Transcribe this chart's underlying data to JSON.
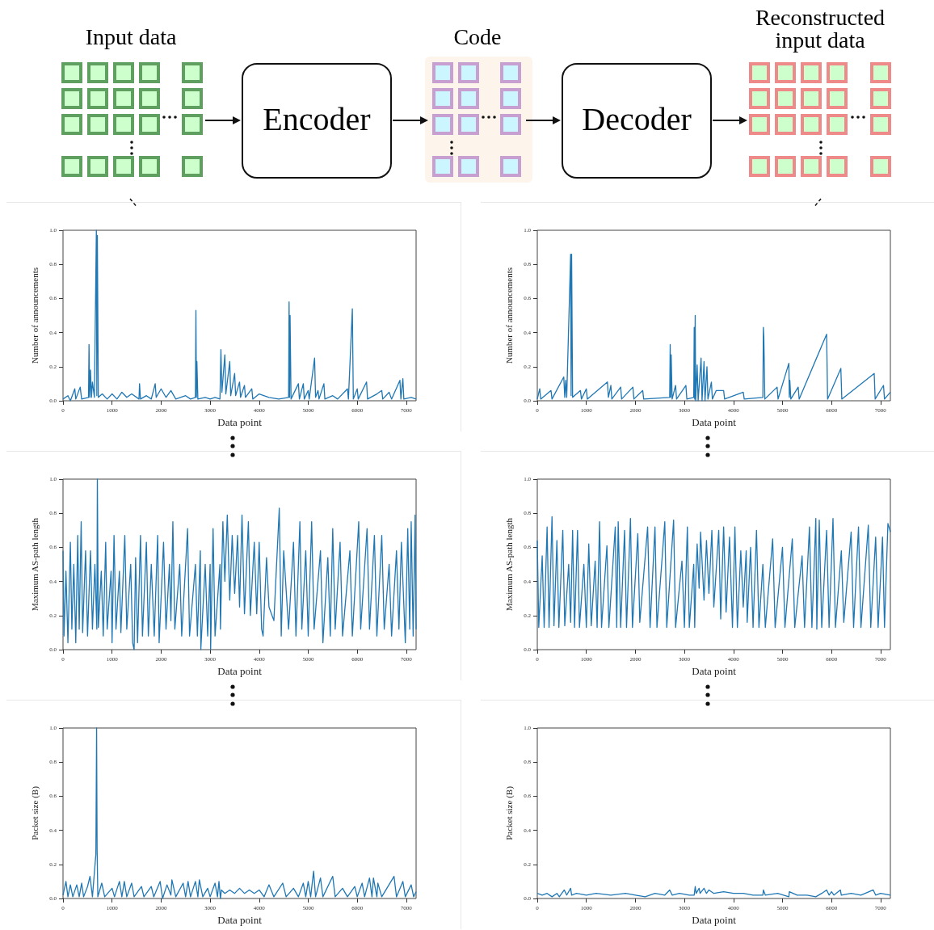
{
  "chart_data": [
    {
      "type": "other",
      "annotations": [
        "Input data",
        "Encoder",
        "Code",
        "Decoder",
        "Reconstructed input data"
      ]
    },
    {
      "type": "line",
      "xlabel": "Data point",
      "ylabel": "Number of announcements",
      "color": "#1f77b4",
      "xlim": [
        0,
        7200
      ],
      "xticks": [
        0,
        1000,
        2000,
        3000,
        4000,
        5000,
        6000,
        7000
      ],
      "ylim": [
        0,
        1
      ],
      "yticks": [
        {
          "value": 0,
          "label": "0.0"
        },
        {
          "value": 0.2,
          "label": "0.2"
        },
        {
          "value": 0.4,
          "label": "0.4"
        },
        {
          "value": 0.6,
          "label": "0.6"
        },
        {
          "value": 0.8,
          "label": "0.8"
        },
        {
          "value": 1,
          "label": "1.0"
        }
      ],
      "x": [
        0,
        100,
        150,
        240,
        260,
        350,
        380,
        520,
        530,
        545,
        560,
        580,
        600,
        640,
        680,
        690,
        700,
        720,
        800,
        900,
        1000,
        1100,
        1200,
        1300,
        1400,
        1550,
        1560,
        1580,
        1700,
        1800,
        1880,
        1900,
        2000,
        2100,
        2200,
        2300,
        2500,
        2600,
        2700,
        2710,
        2720,
        2730,
        2750,
        2900,
        3000,
        3100,
        3200,
        3220,
        3240,
        3300,
        3320,
        3400,
        3420,
        3500,
        3520,
        3600,
        3620,
        3700,
        3720,
        3850,
        3870,
        4000,
        4200,
        4400,
        4600,
        4610,
        4620,
        4630,
        4650,
        4800,
        4820,
        4900,
        4920,
        5000,
        5020,
        5130,
        5150,
        5200,
        5220,
        5320,
        5340,
        5500,
        5600,
        5800,
        5820,
        5900,
        5920,
        6000,
        6020,
        6190,
        6210,
        6400,
        6500,
        6520,
        6650,
        6700,
        6870,
        6890,
        6930,
        6950,
        7100,
        7200
      ],
      "values": [
        0.01,
        0.03,
        0.0,
        0.07,
        0.01,
        0.08,
        0.01,
        0.02,
        0.33,
        0.02,
        0.18,
        0.02,
        0.11,
        0.02,
        1.0,
        0.03,
        0.97,
        0.02,
        0.04,
        0.01,
        0.04,
        0.01,
        0.05,
        0.02,
        0.04,
        0.01,
        0.1,
        0.01,
        0.03,
        0.01,
        0.1,
        0.02,
        0.07,
        0.02,
        0.06,
        0.01,
        0.03,
        0.01,
        0.02,
        0.53,
        0.02,
        0.23,
        0.01,
        0.02,
        0.01,
        0.02,
        0.01,
        0.3,
        0.05,
        0.27,
        0.04,
        0.23,
        0.03,
        0.16,
        0.03,
        0.11,
        0.02,
        0.09,
        0.02,
        0.07,
        0.01,
        0.04,
        0.02,
        0.01,
        0.02,
        0.58,
        0.02,
        0.5,
        0.01,
        0.1,
        0.01,
        0.1,
        0.01,
        0.06,
        0.01,
        0.25,
        0.02,
        0.06,
        0.01,
        0.1,
        0.01,
        0.03,
        0.01,
        0.07,
        0.01,
        0.54,
        0.01,
        0.07,
        0.01,
        0.11,
        0.01,
        0.04,
        0.06,
        0.01,
        0.05,
        0.01,
        0.12,
        0.01,
        0.13,
        0.01,
        0.02,
        0.01
      ]
    },
    {
      "type": "line",
      "xlabel": "Data point",
      "ylabel": "Number of announcements",
      "color": "#1f77b4",
      "xlim": [
        0,
        7200
      ],
      "xticks": [
        0,
        1000,
        2000,
        3000,
        4000,
        5000,
        6000,
        7000
      ],
      "ylim": [
        0,
        1
      ],
      "yticks": [
        {
          "value": 0,
          "label": "0.0"
        },
        {
          "value": 0.2,
          "label": "0.2"
        },
        {
          "value": 0.4,
          "label": "0.4"
        },
        {
          "value": 0.6,
          "label": "0.6"
        },
        {
          "value": 0.8,
          "label": "0.8"
        },
        {
          "value": 1,
          "label": "1.0"
        }
      ],
      "x": [
        0,
        50,
        70,
        280,
        300,
        540,
        560,
        580,
        600,
        680,
        690,
        700,
        720,
        880,
        900,
        1000,
        1020,
        1430,
        1450,
        1500,
        1520,
        1700,
        1720,
        1950,
        1970,
        2150,
        2170,
        2700,
        2710,
        2720,
        2730,
        2750,
        2820,
        2840,
        3030,
        3050,
        3190,
        3200,
        3210,
        3220,
        3230,
        3260,
        3280,
        3340,
        3360,
        3400,
        3420,
        3460,
        3480,
        3550,
        3570,
        3650,
        3800,
        3820,
        4200,
        4220,
        4600,
        4610,
        4620,
        4640,
        4890,
        4910,
        5130,
        5140,
        5150,
        5170,
        5320,
        5340,
        5900,
        5920,
        6190,
        6210,
        6870,
        6890,
        7060,
        7080,
        7200
      ],
      "values": [
        0.01,
        0.07,
        0.01,
        0.06,
        0.01,
        0.14,
        0.02,
        0.12,
        0.02,
        0.86,
        0.03,
        0.86,
        0.02,
        0.06,
        0.01,
        0.07,
        0.01,
        0.11,
        0.02,
        0.09,
        0.01,
        0.08,
        0.01,
        0.08,
        0.01,
        0.06,
        0.01,
        0.02,
        0.33,
        0.02,
        0.27,
        0.01,
        0.09,
        0.01,
        0.09,
        0.01,
        0.02,
        0.43,
        0.01,
        0.5,
        0.0,
        0.21,
        0.0,
        0.25,
        0.0,
        0.23,
        0.0,
        0.2,
        0.01,
        0.11,
        0.01,
        0.06,
        0.06,
        0.01,
        0.05,
        0.01,
        0.02,
        0.43,
        0.37,
        0.01,
        0.08,
        0.01,
        0.22,
        0.02,
        0.12,
        0.01,
        0.08,
        0.01,
        0.39,
        0.01,
        0.19,
        0.01,
        0.16,
        0.01,
        0.09,
        0.01,
        0.05
      ]
    },
    {
      "type": "line",
      "xlabel": "Data point",
      "ylabel": "Maximum AS-path length",
      "color": "#1f77b4",
      "xlim": [
        0,
        7200
      ],
      "xticks": [
        0,
        1000,
        2000,
        3000,
        4000,
        5000,
        6000,
        7000
      ],
      "ylim": [
        0,
        1
      ],
      "yticks": [
        {
          "value": 0,
          "label": "0.0"
        },
        {
          "value": 0.2,
          "label": "0.2"
        },
        {
          "value": 0.4,
          "label": "0.4"
        },
        {
          "value": 0.6,
          "label": "0.6"
        },
        {
          "value": 0.8,
          "label": "0.8"
        },
        {
          "value": 1,
          "label": "1.0"
        }
      ],
      "x": [
        0,
        20,
        60,
        100,
        150,
        180,
        220,
        260,
        300,
        330,
        370,
        400,
        460,
        500,
        560,
        600,
        650,
        690,
        700,
        720,
        780,
        820,
        870,
        900,
        980,
        1000,
        1040,
        1080,
        1150,
        1180,
        1260,
        1300,
        1380,
        1420,
        1450,
        1480,
        1520,
        1580,
        1620,
        1700,
        1740,
        1800,
        1860,
        1930,
        1960,
        2050,
        2100,
        2170,
        2200,
        2240,
        2280,
        2380,
        2420,
        2540,
        2580,
        2700,
        2740,
        2800,
        2810,
        2900,
        2950,
        3000,
        3010,
        3060,
        3100,
        3200,
        3210,
        3230,
        3260,
        3300,
        3350,
        3400,
        3450,
        3500,
        3560,
        3600,
        3650,
        3700,
        3780,
        3820,
        3900,
        3950,
        4000,
        4050,
        4080,
        4150,
        4200,
        4300,
        4410,
        4450,
        4500,
        4600,
        4700,
        4750,
        4830,
        4870,
        4950,
        5000,
        5070,
        5120,
        5250,
        5300,
        5400,
        5450,
        5500,
        5550,
        5650,
        5700,
        5850,
        5900,
        6030,
        6070,
        6200,
        6250,
        6350,
        6400,
        6500,
        6550,
        6650,
        6700,
        6800,
        6850,
        6900,
        6980,
        7030,
        7070,
        7100,
        7140,
        7180,
        7200
      ],
      "values": [
        0.58,
        0.08,
        0.46,
        0.04,
        0.63,
        0.12,
        0.5,
        0.04,
        0.67,
        0.12,
        0.75,
        0.1,
        0.58,
        0.08,
        0.58,
        0.12,
        0.5,
        0.12,
        1.0,
        0.13,
        0.46,
        0.08,
        0.63,
        0.12,
        0.46,
        0.04,
        0.67,
        0.12,
        0.46,
        0.1,
        0.67,
        0.12,
        0.5,
        0.04,
        0.0,
        0.54,
        0.04,
        0.67,
        0.08,
        0.63,
        0.08,
        0.5,
        0.08,
        0.67,
        0.04,
        0.63,
        0.12,
        0.5,
        0.17,
        0.75,
        0.12,
        0.5,
        0.08,
        0.71,
        0.08,
        0.5,
        0.08,
        0.58,
        0.0,
        0.5,
        0.08,
        0.5,
        0.0,
        0.71,
        0.08,
        0.5,
        0.12,
        0.38,
        0.75,
        0.4,
        0.79,
        0.29,
        0.67,
        0.33,
        0.67,
        0.25,
        0.79,
        0.21,
        0.75,
        0.2,
        0.63,
        0.21,
        0.63,
        0.12,
        0.08,
        0.54,
        0.25,
        0.17,
        0.83,
        0.08,
        0.58,
        0.12,
        0.63,
        0.08,
        0.75,
        0.12,
        0.58,
        0.08,
        0.75,
        0.12,
        0.58,
        0.04,
        0.54,
        0.08,
        0.71,
        0.12,
        0.63,
        0.08,
        0.58,
        0.08,
        0.75,
        0.12,
        0.71,
        0.12,
        0.67,
        0.08,
        0.67,
        0.12,
        0.5,
        0.08,
        0.58,
        0.12,
        0.63,
        0.04,
        0.71,
        0.12,
        0.75,
        0.08,
        0.79,
        0.12
      ]
    },
    {
      "type": "line",
      "xlabel": "Data point",
      "ylabel": "Maximum AS-path length",
      "color": "#1f77b4",
      "xlim": [
        0,
        7200
      ],
      "xticks": [
        0,
        1000,
        2000,
        3000,
        4000,
        5000,
        6000,
        7000
      ],
      "ylim": [
        0,
        1
      ],
      "yticks": [
        {
          "value": 0,
          "label": "0.0"
        },
        {
          "value": 0.2,
          "label": "0.2"
        },
        {
          "value": 0.4,
          "label": "0.4"
        },
        {
          "value": 0.6,
          "label": "0.6"
        },
        {
          "value": 0.8,
          "label": "0.8"
        },
        {
          "value": 1,
          "label": "1.0"
        }
      ],
      "x": [
        0,
        30,
        100,
        140,
        200,
        240,
        300,
        340,
        400,
        440,
        520,
        560,
        640,
        680,
        720,
        760,
        820,
        860,
        950,
        1000,
        1050,
        1100,
        1180,
        1220,
        1270,
        1310,
        1420,
        1460,
        1590,
        1620,
        1650,
        1700,
        1780,
        1820,
        1900,
        1940,
        2050,
        2090,
        2250,
        2300,
        2400,
        2440,
        2600,
        2640,
        2780,
        2820,
        2950,
        3000,
        3060,
        3100,
        3190,
        3210,
        3230,
        3260,
        3300,
        3330,
        3400,
        3450,
        3500,
        3560,
        3600,
        3700,
        3740,
        3800,
        3850,
        3920,
        3980,
        4030,
        4080,
        4150,
        4200,
        4260,
        4280,
        4350,
        4400,
        4470,
        4520,
        4600,
        4650,
        4800,
        4850,
        5000,
        5050,
        5200,
        5250,
        5400,
        5450,
        5550,
        5600,
        5680,
        5700,
        5750,
        5800,
        5900,
        5950,
        6030,
        6080,
        6200,
        6250,
        6400,
        6450,
        6550,
        6600,
        6750,
        6800,
        6900,
        6950,
        7040,
        7080,
        7150,
        7200
      ],
      "values": [
        0.64,
        0.13,
        0.55,
        0.13,
        0.72,
        0.13,
        0.78,
        0.14,
        0.64,
        0.13,
        0.7,
        0.14,
        0.5,
        0.16,
        0.7,
        0.13,
        0.7,
        0.13,
        0.5,
        0.13,
        0.62,
        0.14,
        0.52,
        0.13,
        0.75,
        0.13,
        0.61,
        0.13,
        0.72,
        0.13,
        0.75,
        0.13,
        0.7,
        0.13,
        0.77,
        0.13,
        0.68,
        0.16,
        0.72,
        0.13,
        0.72,
        0.13,
        0.75,
        0.13,
        0.76,
        0.13,
        0.52,
        0.13,
        0.72,
        0.13,
        0.5,
        0.13,
        0.4,
        0.62,
        0.36,
        0.69,
        0.29,
        0.64,
        0.33,
        0.7,
        0.25,
        0.7,
        0.18,
        0.72,
        0.22,
        0.66,
        0.13,
        0.72,
        0.13,
        0.58,
        0.25,
        0.58,
        0.16,
        0.6,
        0.13,
        0.7,
        0.13,
        0.5,
        0.13,
        0.65,
        0.13,
        0.6,
        0.13,
        0.65,
        0.13,
        0.55,
        0.13,
        0.72,
        0.13,
        0.77,
        0.12,
        0.76,
        0.13,
        0.7,
        0.13,
        0.77,
        0.13,
        0.58,
        0.16,
        0.69,
        0.13,
        0.72,
        0.13,
        0.73,
        0.13,
        0.66,
        0.13,
        0.66,
        0.13,
        0.74,
        0.69
      ]
    },
    {
      "type": "line",
      "xlabel": "Data point",
      "ylabel": "Packet size (B)",
      "color": "#1f77b4",
      "xlim": [
        0,
        7200
      ],
      "xticks": [
        0,
        1000,
        2000,
        3000,
        4000,
        5000,
        6000,
        7000
      ],
      "ylim": [
        0,
        1
      ],
      "yticks": [
        {
          "value": 0,
          "label": "0.0"
        },
        {
          "value": 0.2,
          "label": "0.2"
        },
        {
          "value": 0.4,
          "label": "0.4"
        },
        {
          "value": 0.6,
          "label": "0.6"
        },
        {
          "value": 0.8,
          "label": "0.8"
        },
        {
          "value": 1,
          "label": "1.0"
        }
      ],
      "x": [
        0,
        60,
        100,
        150,
        200,
        280,
        330,
        380,
        420,
        500,
        550,
        600,
        670,
        685,
        695,
        710,
        790,
        850,
        1000,
        1050,
        1150,
        1200,
        1250,
        1300,
        1400,
        1450,
        1600,
        1650,
        1800,
        1850,
        1980,
        2030,
        2120,
        2200,
        2220,
        2300,
        2450,
        2500,
        2550,
        2600,
        2700,
        2750,
        2780,
        2850,
        2950,
        3000,
        3100,
        3150,
        3180,
        3210,
        3230,
        3300,
        3400,
        3500,
        3600,
        3700,
        3800,
        3900,
        4000,
        4100,
        4200,
        4300,
        4480,
        4550,
        4700,
        4800,
        4900,
        4950,
        5000,
        5050,
        5110,
        5150,
        5250,
        5300,
        5500,
        5550,
        5700,
        5800,
        5950,
        6000,
        6100,
        6150,
        6250,
        6300,
        6330,
        6400,
        6420,
        6500,
        6750,
        6800,
        6930,
        6980,
        7100,
        7150,
        7200
      ],
      "values": [
        0.02,
        0.1,
        0.01,
        0.08,
        0.01,
        0.08,
        0.01,
        0.09,
        0.01,
        0.07,
        0.13,
        0.01,
        0.26,
        1.0,
        0.29,
        0.01,
        0.09,
        0.01,
        0.06,
        0.01,
        0.1,
        0.01,
        0.1,
        0.01,
        0.09,
        0.01,
        0.07,
        0.01,
        0.07,
        0.01,
        0.1,
        0.0,
        0.08,
        0.02,
        0.11,
        0.01,
        0.09,
        0.01,
        0.1,
        0.01,
        0.1,
        0.01,
        0.11,
        0.01,
        0.06,
        0.01,
        0.09,
        0.01,
        0.1,
        0.0,
        0.05,
        0.03,
        0.05,
        0.03,
        0.06,
        0.03,
        0.05,
        0.03,
        0.05,
        0.01,
        0.08,
        0.01,
        0.09,
        0.01,
        0.06,
        0.01,
        0.09,
        0.01,
        0.1,
        0.01,
        0.16,
        0.01,
        0.12,
        0.01,
        0.13,
        0.01,
        0.06,
        0.01,
        0.07,
        0.01,
        0.09,
        0.01,
        0.12,
        0.01,
        0.12,
        0.01,
        0.09,
        0.01,
        0.13,
        0.01,
        0.1,
        0.01,
        0.08,
        0.01,
        0.04
      ]
    },
    {
      "type": "line",
      "xlabel": "Data point",
      "ylabel": "Packet size (B)",
      "color": "#1f77b4",
      "xlim": [
        0,
        7200
      ],
      "xticks": [
        0,
        1000,
        2000,
        3000,
        4000,
        5000,
        6000,
        7000
      ],
      "ylim": [
        0,
        1
      ],
      "yticks": [
        {
          "value": 0,
          "label": "0.0"
        },
        {
          "value": 0.2,
          "label": "0.2"
        },
        {
          "value": 0.4,
          "label": "0.4"
        },
        {
          "value": 0.6,
          "label": "0.6"
        },
        {
          "value": 0.8,
          "label": "0.8"
        },
        {
          "value": 1,
          "label": "1.0"
        }
      ],
      "x": [
        0,
        100,
        200,
        300,
        400,
        450,
        550,
        600,
        680,
        700,
        800,
        1000,
        1200,
        1500,
        1800,
        2000,
        2200,
        2400,
        2600,
        2700,
        2750,
        2900,
        3100,
        3200,
        3220,
        3240,
        3300,
        3320,
        3400,
        3450,
        3500,
        3600,
        3800,
        4000,
        4200,
        4400,
        4600,
        4610,
        4650,
        4900,
        5130,
        5140,
        5300,
        5500,
        5680,
        5800,
        5900,
        5950,
        6000,
        6050,
        6180,
        6200,
        6400,
        6600,
        6850,
        6900,
        7000,
        7200
      ],
      "values": [
        0.03,
        0.02,
        0.03,
        0.01,
        0.03,
        0.01,
        0.05,
        0.02,
        0.06,
        0.02,
        0.03,
        0.02,
        0.03,
        0.02,
        0.03,
        0.02,
        0.01,
        0.03,
        0.02,
        0.05,
        0.02,
        0.03,
        0.02,
        0.02,
        0.07,
        0.03,
        0.06,
        0.03,
        0.06,
        0.03,
        0.05,
        0.03,
        0.04,
        0.03,
        0.03,
        0.02,
        0.02,
        0.05,
        0.02,
        0.03,
        0.01,
        0.04,
        0.02,
        0.02,
        0.01,
        0.03,
        0.05,
        0.02,
        0.04,
        0.02,
        0.05,
        0.02,
        0.03,
        0.02,
        0.05,
        0.02,
        0.03,
        0.02
      ]
    }
  ]
}
